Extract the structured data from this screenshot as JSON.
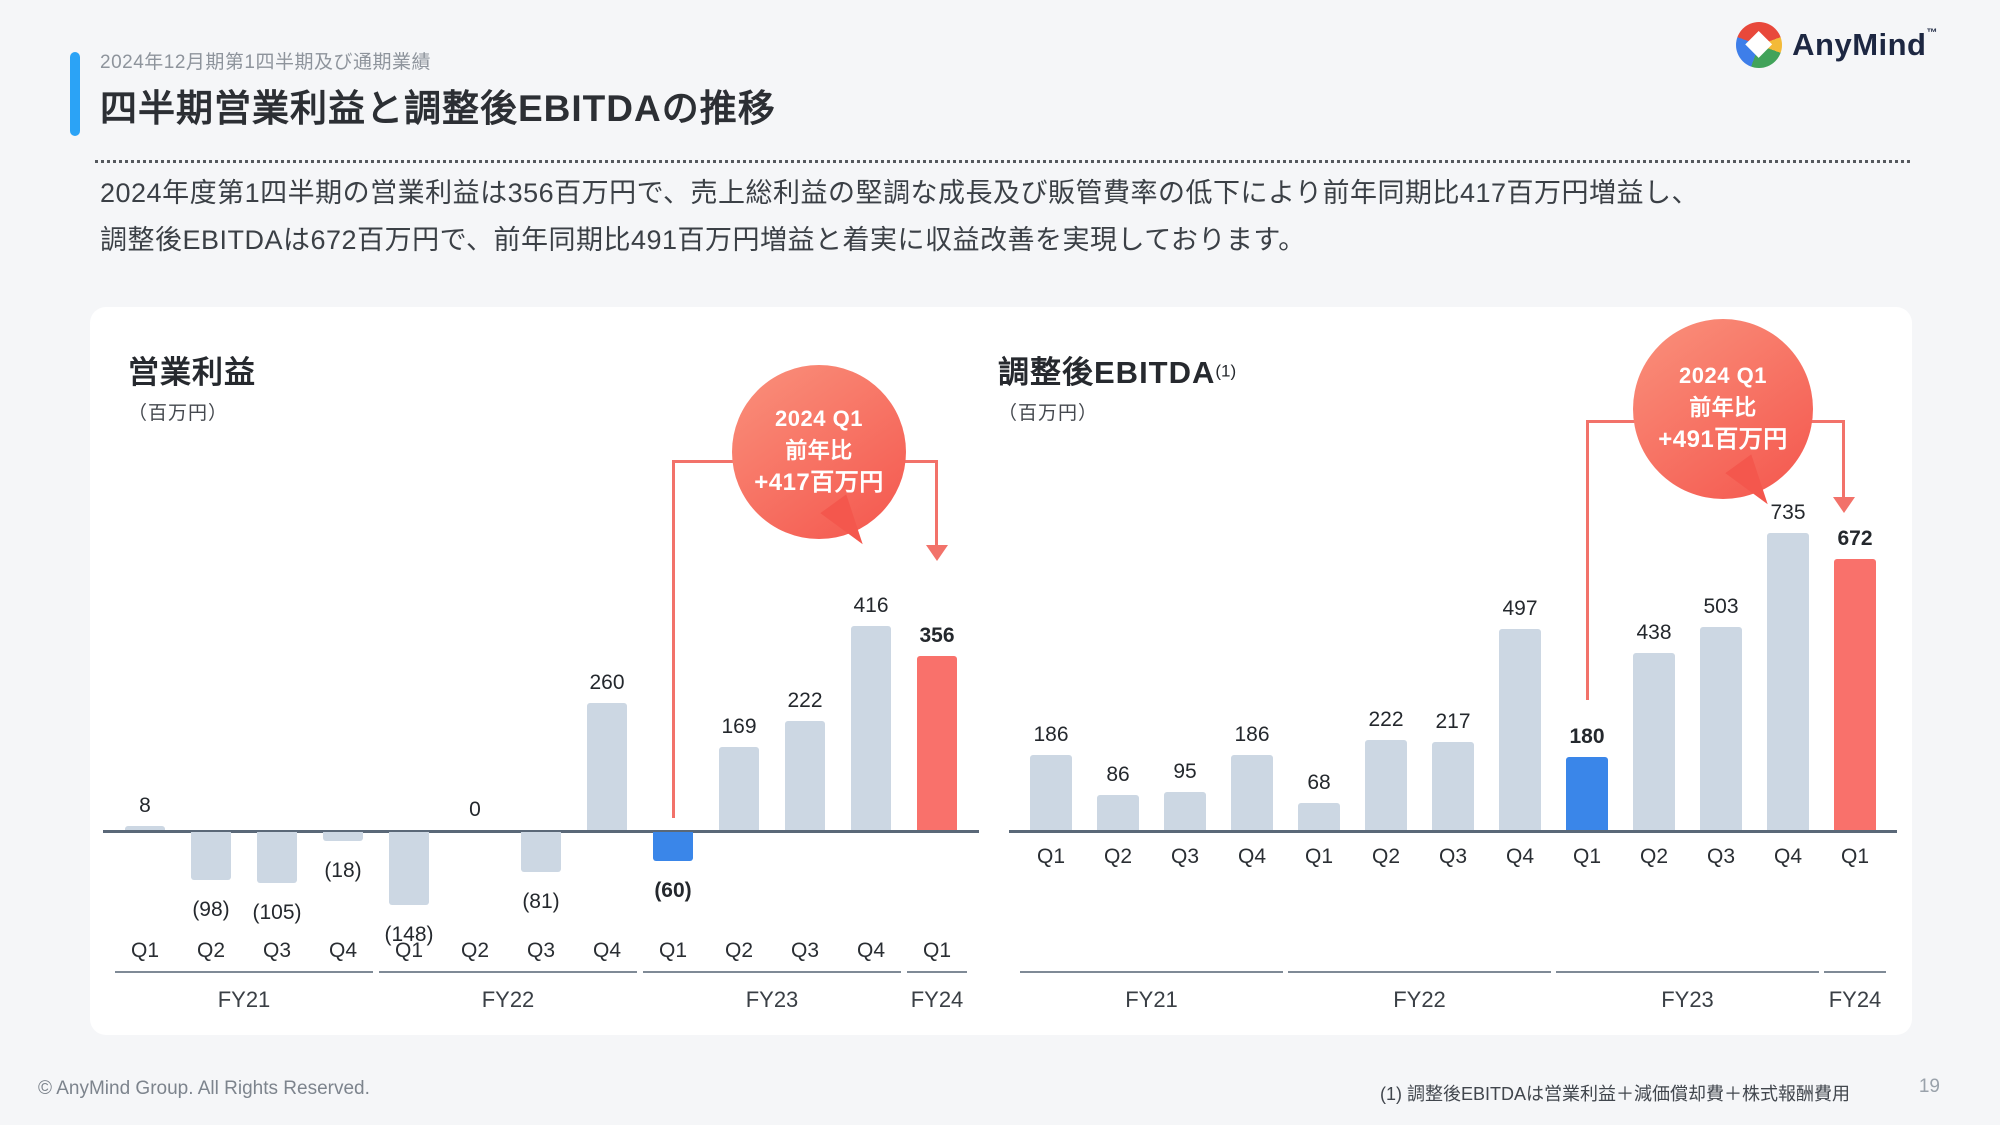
{
  "header": {
    "eyebrow": "2024年12月期第1四半期及び通期業績",
    "title": "四半期営業利益と調整後EBITDAの推移",
    "logo_text": "AnyMind",
    "logo_tm": "™"
  },
  "lead": {
    "line1": "2024年度第1四半期の営業利益は356百万円で、売上総利益の堅調な成長及び販管費率の低下により前年同期比417百万円増益し、",
    "line2": "調整後EBITDAは672百万円で、前年同期比491百万円増益と着実に収益改善を実現しております。"
  },
  "theme": {
    "accent_blue": "#2ba3f6",
    "page_background": "#f5f6f8",
    "card_background": "#ffffff"
  },
  "chart_data": [
    {
      "type": "bar",
      "title": "営業利益",
      "title_sup": "",
      "unit_label": "（百万円）",
      "categories": [
        "Q1",
        "Q2",
        "Q3",
        "Q4",
        "Q1",
        "Q2",
        "Q3",
        "Q4",
        "Q1",
        "Q2",
        "Q3",
        "Q4",
        "Q1"
      ],
      "groups": [
        {
          "label": "FY21",
          "span": 4
        },
        {
          "label": "FY22",
          "span": 4
        },
        {
          "label": "FY23",
          "span": 4
        },
        {
          "label": "FY24",
          "span": 1
        }
      ],
      "values": [
        8,
        -98,
        -105,
        -18,
        -148,
        0,
        -81,
        260,
        -60,
        169,
        222,
        416,
        356
      ],
      "labels": [
        "8",
        "(98)",
        "(105)",
        "(18)",
        "(148)",
        "0",
        "(81)",
        "260",
        "(60)",
        "169",
        "222",
        "416",
        "356"
      ],
      "highlight_blue_index": 8,
      "highlight_red_index": 12,
      "callout": {
        "line1": "2024 Q1",
        "line2": "前年比",
        "line3": "+417百万円"
      },
      "gridlines": false,
      "y_axis_shown": false,
      "value_labels_shown": true,
      "colors": {
        "bar_default": "#ccd7e3",
        "bar_blue": "#3a86e9",
        "bar_red": "#f9716b",
        "connector": "#f2726a"
      }
    },
    {
      "type": "bar",
      "title": "調整後EBITDA",
      "title_sup": "(1)",
      "unit_label": "（百万円）",
      "categories": [
        "Q1",
        "Q2",
        "Q3",
        "Q4",
        "Q1",
        "Q2",
        "Q3",
        "Q4",
        "Q1",
        "Q2",
        "Q3",
        "Q4",
        "Q1"
      ],
      "groups": [
        {
          "label": "FY21",
          "span": 4
        },
        {
          "label": "FY22",
          "span": 4
        },
        {
          "label": "FY23",
          "span": 4
        },
        {
          "label": "FY24",
          "span": 1
        }
      ],
      "values": [
        186,
        86,
        95,
        186,
        68,
        222,
        217,
        497,
        180,
        438,
        503,
        735,
        672
      ],
      "labels": [
        "186",
        "86",
        "95",
        "186",
        "68",
        "222",
        "217",
        "497",
        "180",
        "438",
        "503",
        "735",
        "672"
      ],
      "highlight_blue_index": 8,
      "highlight_red_index": 12,
      "callout": {
        "line1": "2024 Q1",
        "line2": "前年比",
        "line3": "+491百万円"
      },
      "gridlines": false,
      "y_axis_shown": false,
      "value_labels_shown": true,
      "colors": {
        "bar_default": "#ccd7e3",
        "bar_blue": "#3a86e9",
        "bar_red": "#f9716b",
        "connector": "#f2726a"
      }
    }
  ],
  "footer": {
    "copyright": "© AnyMind Group. All Rights Reserved.",
    "footnote": "(1) 調整後EBITDAは営業利益＋減価償却費＋株式報酬費用",
    "page_number": "19"
  }
}
